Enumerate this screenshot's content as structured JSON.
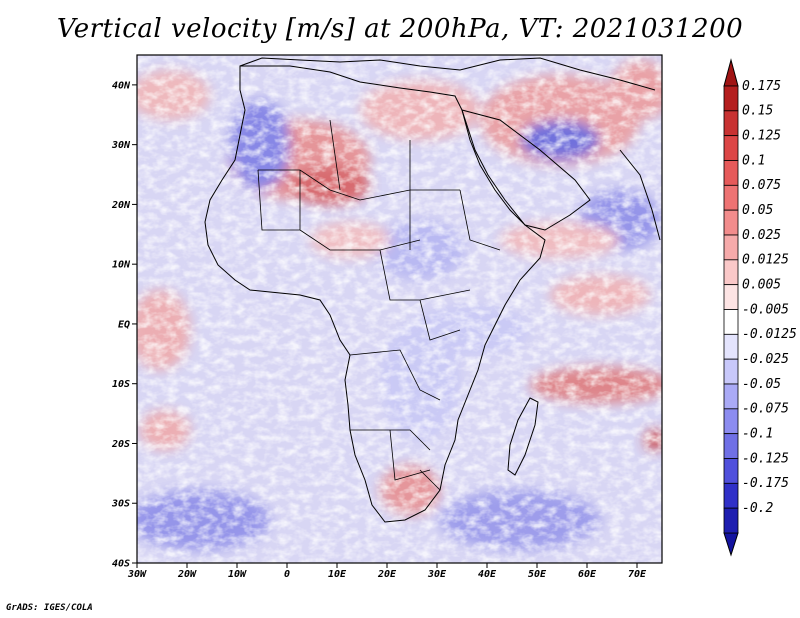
{
  "title": "Vertical velocity [m/s] at 200hPa, VT: 2021031200",
  "credit": "GrADS: IGES/COLA",
  "map": {
    "lon_range": [
      -30,
      75
    ],
    "lat_range": [
      -40,
      45
    ],
    "lon_ticks": [
      {
        "value": -30,
        "label": "30W"
      },
      {
        "value": -20,
        "label": "20W"
      },
      {
        "value": -10,
        "label": "10W"
      },
      {
        "value": 0,
        "label": "0"
      },
      {
        "value": 10,
        "label": "10E"
      },
      {
        "value": 20,
        "label": "20E"
      },
      {
        "value": 30,
        "label": "30E"
      },
      {
        "value": 40,
        "label": "40E"
      },
      {
        "value": 50,
        "label": "50E"
      },
      {
        "value": 60,
        "label": "60E"
      },
      {
        "value": 70,
        "label": "70E"
      }
    ],
    "lat_ticks": [
      {
        "value": 40,
        "label": "40N"
      },
      {
        "value": 30,
        "label": "30N"
      },
      {
        "value": 20,
        "label": "20N"
      },
      {
        "value": 10,
        "label": "10N"
      },
      {
        "value": 0,
        "label": "EQ"
      },
      {
        "value": -10,
        "label": "10S"
      },
      {
        "value": -20,
        "label": "20S"
      },
      {
        "value": -30,
        "label": "30S"
      },
      {
        "value": -40,
        "label": "40S"
      }
    ]
  },
  "colorbar": {
    "levels": [
      {
        "label": "0.175",
        "color": "#b41e1e"
      },
      {
        "label": "0.15",
        "color": "#c83232"
      },
      {
        "label": "0.125",
        "color": "#dc4646"
      },
      {
        "label": "0.1",
        "color": "#e65a5a"
      },
      {
        "label": "0.075",
        "color": "#ee7373"
      },
      {
        "label": "0.05",
        "color": "#f28c8c"
      },
      {
        "label": "0.025",
        "color": "#f6aaaa"
      },
      {
        "label": "0.0125",
        "color": "#fac8c8"
      },
      {
        "label": "0.005",
        "color": "#fde4e4"
      },
      {
        "label": "-0.005",
        "color": "#ffffff"
      },
      {
        "label": "-0.0125",
        "color": "#e4e4fd"
      },
      {
        "label": "-0.025",
        "color": "#c8c8fa"
      },
      {
        "label": "-0.05",
        "color": "#aaaaf6"
      },
      {
        "label": "-0.075",
        "color": "#8c8cf0"
      },
      {
        "label": "-0.1",
        "color": "#7070e6"
      },
      {
        "label": "-0.125",
        "color": "#5050dc"
      },
      {
        "label": "-0.175",
        "color": "#3030c8"
      },
      {
        "label": "-0.2",
        "color": "#1e1eb0"
      }
    ],
    "top_color": "#a01414",
    "bottom_color": "#1414a0"
  }
}
